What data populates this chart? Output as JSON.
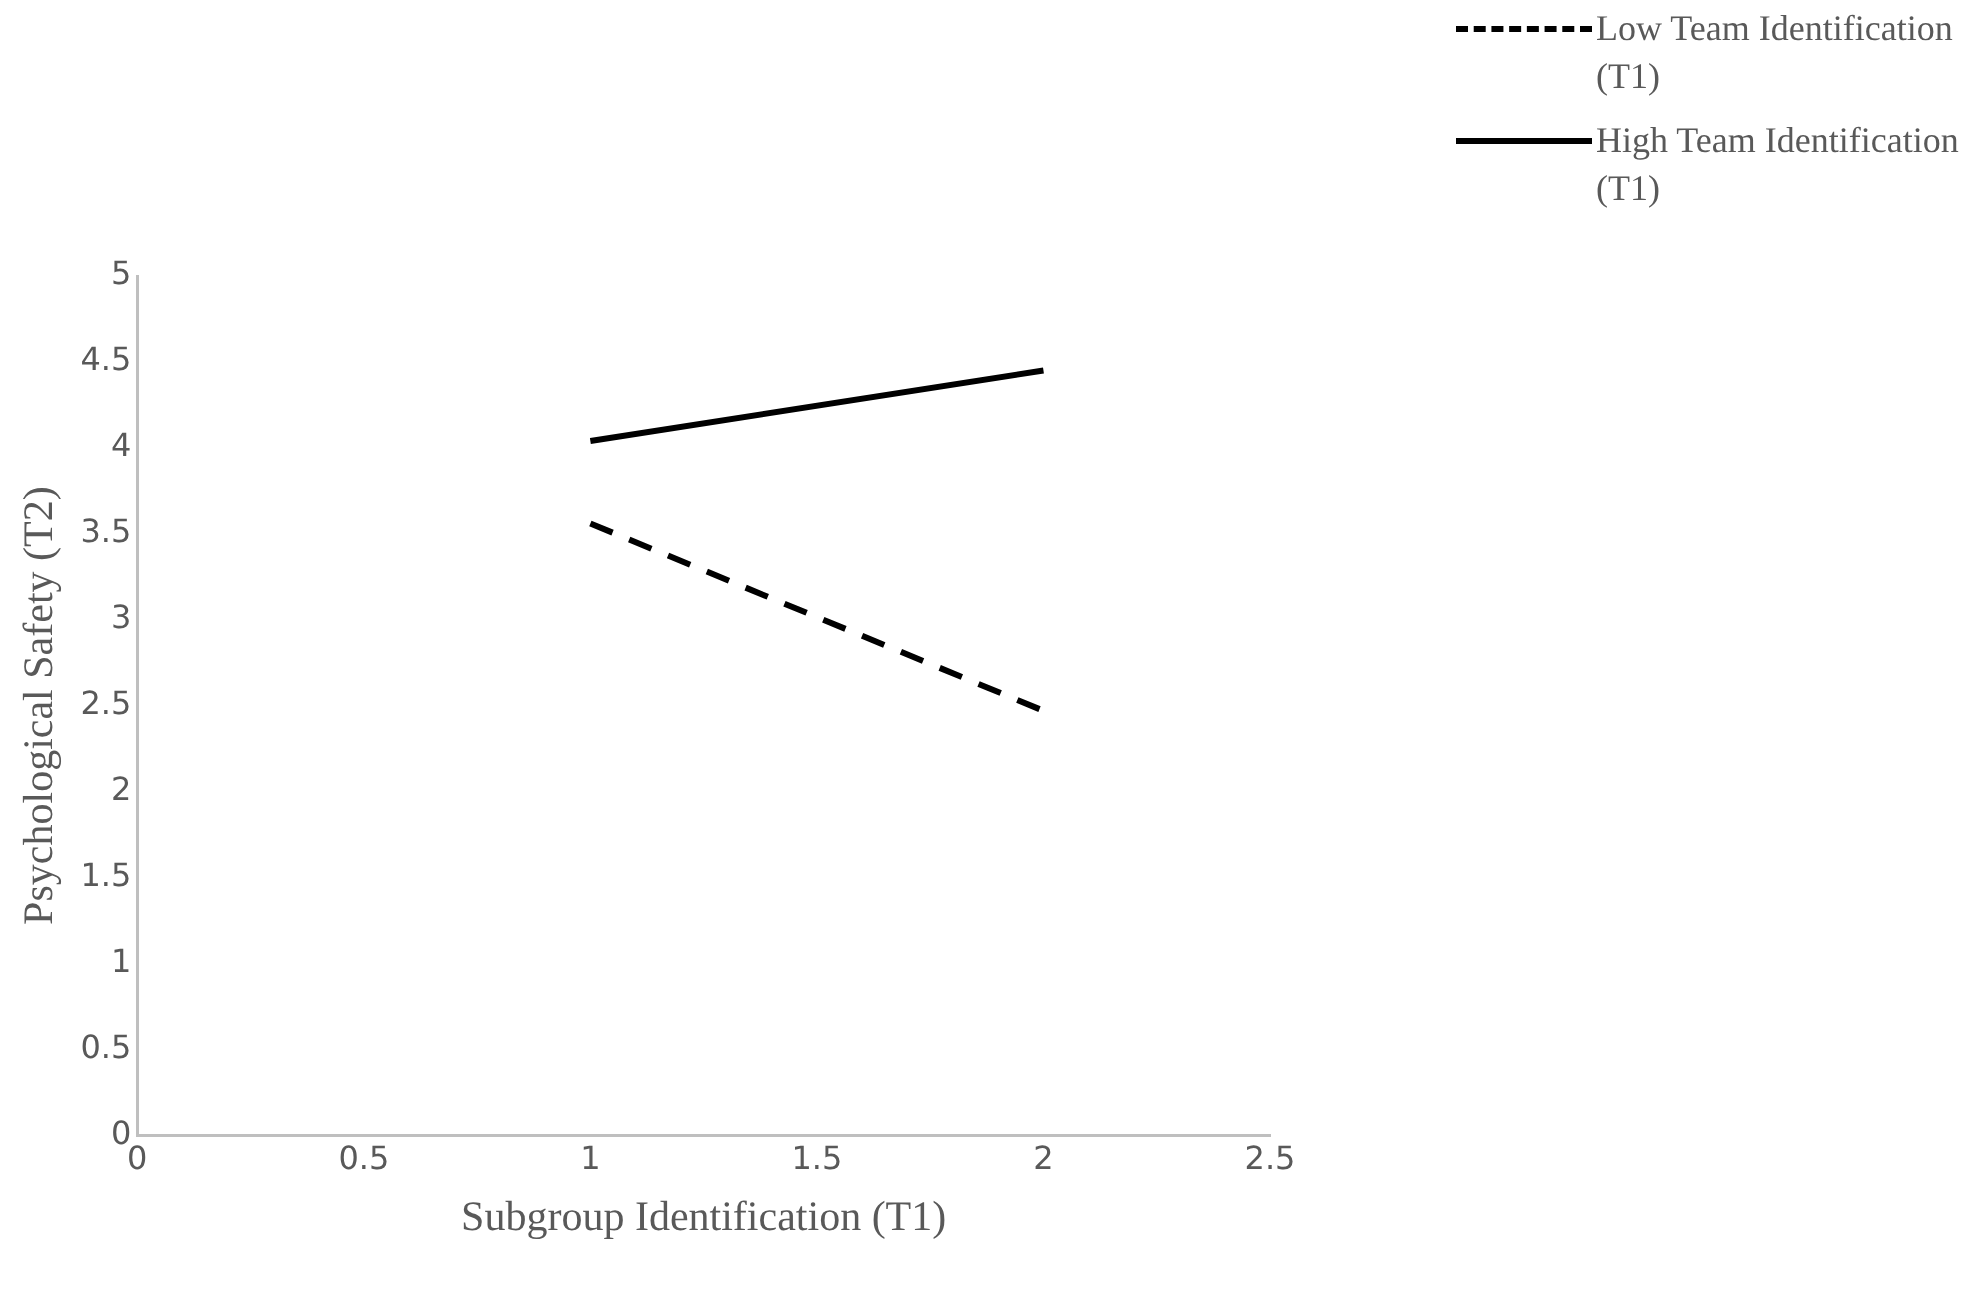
{
  "chart_data": {
    "type": "line",
    "xlabel": "Subgroup Identification (T1)",
    "ylabel": "Psychological Safety (T2)",
    "x": [
      1,
      2
    ],
    "xlim": [
      0,
      2.5
    ],
    "xticks": [
      0,
      0.5,
      1,
      1.5,
      2,
      2.5
    ],
    "ylim": [
      0,
      5
    ],
    "yticks": [
      0,
      0.5,
      1,
      1.5,
      2,
      2.5,
      3,
      3.5,
      4,
      4.5,
      5
    ],
    "grid": false,
    "legend": "top right",
    "marker": "none",
    "series": [
      {
        "name": "Low Team Identification (T1)",
        "color": "#000000",
        "line_style": "dashed",
        "values": [
          3.56,
          2.47
        ]
      },
      {
        "name": "High Team Identification (T1)",
        "color": "#000000",
        "line_style": "solid",
        "values": [
          4.04,
          4.45
        ]
      }
    ]
  }
}
